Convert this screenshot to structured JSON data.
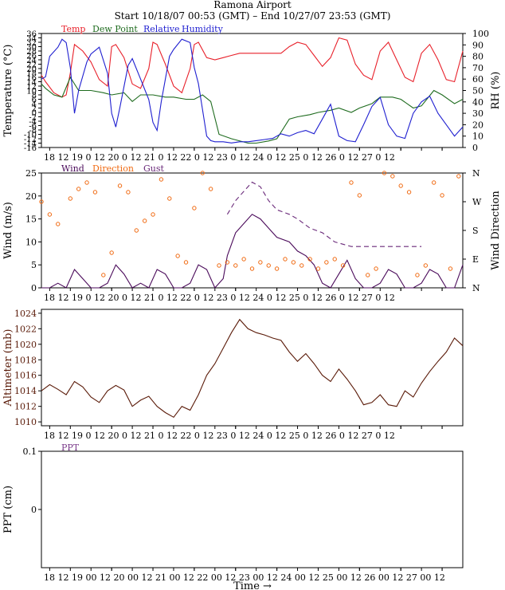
{
  "header": {
    "title": "Ramona Airport",
    "subtitle": "Start 10/18/07 00:53 (GMT) – End 10/27/07 23:53 (GMT)"
  },
  "time_axis": {
    "ticks": [
      {
        "t": 18,
        "label": "18"
      },
      {
        "t": 18.5,
        "label": "12"
      },
      {
        "t": 19,
        "label": "19"
      },
      {
        "t": 19.5,
        "label": "00"
      },
      {
        "t": 19.5,
        "label": "12"
      },
      {
        "t": 20,
        "label": "20"
      },
      {
        "t": 20.5,
        "label": "00"
      },
      {
        "t": 20.5,
        "label": "12"
      },
      {
        "t": 21,
        "label": "21"
      },
      {
        "t": 21.5,
        "label": "00"
      },
      {
        "t": 21.5,
        "label": "12"
      },
      {
        "t": 22,
        "label": "22"
      },
      {
        "t": 22.5,
        "label": "00"
      },
      {
        "t": 22.5,
        "label": "12"
      },
      {
        "t": 23,
        "label": "23"
      },
      {
        "t": 23.5,
        "label": "00"
      },
      {
        "t": 23.5,
        "label": "12"
      },
      {
        "t": 24,
        "label": "24"
      },
      {
        "t": 24.5,
        "label": "00"
      },
      {
        "t": 24.5,
        "label": "12"
      },
      {
        "t": 25,
        "label": "25"
      },
      {
        "t": 25.5,
        "label": "00"
      },
      {
        "t": 25.5,
        "label": "12"
      },
      {
        "t": 26,
        "label": "26"
      },
      {
        "t": 26.5,
        "label": "00"
      },
      {
        "t": 26.5,
        "label": "12"
      },
      {
        "t": 27,
        "label": "27"
      },
      {
        "t": 27.5,
        "label": "00"
      },
      {
        "t": 27.5,
        "label": "12"
      }
    ],
    "tick_text": "18 12 19 0 12 20 0 12 21 0 12 22 0 12 23 0 12 24 0 12 25 0 12 26 0 12 27 0 12",
    "tick_text_bottom": "18 12 19 00 12 20 00 12 21 00 12 22 00 12 23 00 12 24 00 12 25 00 12 26 00 12 27 00 12",
    "xlabel": "Time →"
  },
  "colors": {
    "temp": "#e8202a",
    "dew": "#1e6b1e",
    "rh": "#1f1fd0",
    "wind": "#4a0a5a",
    "direction": "#f06a12",
    "gust": "#6a2a7a",
    "altimeter": "#5a1a08",
    "ppt": "#7a3a8a",
    "axis": "#000000"
  },
  "chart_data": [
    {
      "type": "line",
      "panel": "temperature",
      "legend": [
        "Temp",
        "Dew Point",
        "Relative Humidity"
      ],
      "ylabel": "Temperature (°C)",
      "ylabel_right": "RH (%)",
      "y_ticks": [
        36,
        34,
        32,
        30,
        28,
        26,
        24,
        22,
        20,
        18,
        16,
        14,
        12,
        10,
        8,
        6,
        4,
        2,
        0,
        -2,
        -4,
        -6,
        -8,
        -10,
        -12,
        -14,
        -16
      ],
      "ylim": [
        -16,
        36
      ],
      "y2_ticks": [
        0,
        10,
        20,
        30,
        40,
        50,
        60,
        70,
        80,
        90,
        100
      ],
      "y2lim": [
        0,
        100
      ],
      "xlim": [
        17.8,
        28.0
      ],
      "series": [
        {
          "name": "Temp",
          "x": [
            17.8,
            17.9,
            18.1,
            18.3,
            18.4,
            18.5,
            18.6,
            18.8,
            19.0,
            19.2,
            19.4,
            19.5,
            19.6,
            19.8,
            20.0,
            20.2,
            20.4,
            20.5,
            20.6,
            20.8,
            21.0,
            21.2,
            21.4,
            21.5,
            21.6,
            21.8,
            22.0,
            22.2,
            22.4,
            22.6,
            22.8,
            23.0,
            23.2,
            23.4,
            23.6,
            23.8,
            24.0,
            24.2,
            24.4,
            24.6,
            24.8,
            25.0,
            25.2,
            25.4,
            25.6,
            25.8,
            26.0,
            26.2,
            26.4,
            26.6,
            26.8,
            27.0,
            27.2,
            27.4,
            27.6,
            27.8,
            28.0
          ],
          "values": [
            17,
            14,
            9,
            7,
            8,
            18,
            31,
            28,
            23,
            15,
            12,
            30,
            31,
            25,
            13,
            11,
            20,
            32,
            31,
            22,
            12,
            9,
            20,
            31,
            32,
            25,
            24,
            25,
            26,
            27,
            27,
            27,
            27,
            27,
            27,
            30,
            32,
            31,
            26,
            21,
            25,
            34,
            33,
            22,
            17,
            15,
            28,
            32,
            24,
            16,
            14,
            27,
            31,
            24,
            15,
            14,
            28
          ]
        },
        {
          "name": "Dew Point",
          "x": [
            17.8,
            17.9,
            18.1,
            18.3,
            18.5,
            18.7,
            19.0,
            19.3,
            19.5,
            19.8,
            20.0,
            20.2,
            20.5,
            20.8,
            21.0,
            21.3,
            21.5,
            21.7,
            21.9,
            22.1,
            22.4,
            22.8,
            23.0,
            23.3,
            23.5,
            23.8,
            24.0,
            24.3,
            24.5,
            24.8,
            25.0,
            25.3,
            25.5,
            25.8,
            26.0,
            26.3,
            26.5,
            26.8,
            27.0,
            27.3,
            27.5,
            27.8,
            28.0
          ],
          "values": [
            13,
            11,
            8,
            7,
            16,
            10,
            10,
            9,
            8,
            9,
            5,
            8,
            8,
            7,
            7,
            6,
            6,
            8,
            5,
            -10,
            -12,
            -14,
            -14,
            -13,
            -12,
            -3,
            -2,
            -1,
            0,
            1,
            2,
            0,
            2,
            4,
            7,
            7,
            6,
            2,
            3,
            10,
            8,
            4,
            6
          ]
        },
        {
          "name": "Relative Humidity",
          "x": [
            17.8,
            17.9,
            18.0,
            18.2,
            18.3,
            18.4,
            18.5,
            18.6,
            18.7,
            18.9,
            19.0,
            19.2,
            19.4,
            19.5,
            19.6,
            19.7,
            19.9,
            20.0,
            20.2,
            20.4,
            20.5,
            20.6,
            20.7,
            20.9,
            21.0,
            21.2,
            21.4,
            21.5,
            21.6,
            21.8,
            21.9,
            22.0,
            22.2,
            22.4,
            22.6,
            22.8,
            23.0,
            23.2,
            23.4,
            23.6,
            23.8,
            24.0,
            24.2,
            24.4,
            24.6,
            24.8,
            25.0,
            25.2,
            25.4,
            25.6,
            25.8,
            26.0,
            26.2,
            26.4,
            26.6,
            26.8,
            27.0,
            27.2,
            27.4,
            27.6,
            27.8,
            28.0
          ],
          "values": [
            60,
            62,
            80,
            88,
            95,
            92,
            70,
            30,
            50,
            75,
            82,
            88,
            65,
            30,
            18,
            35,
            72,
            78,
            60,
            42,
            22,
            15,
            40,
            80,
            86,
            95,
            92,
            70,
            56,
            10,
            6,
            5,
            5,
            4,
            5,
            5,
            6,
            7,
            8,
            12,
            10,
            13,
            15,
            12,
            25,
            38,
            10,
            6,
            5,
            20,
            36,
            44,
            20,
            10,
            8,
            30,
            40,
            45,
            30,
            20,
            10,
            18
          ]
        }
      ]
    },
    {
      "type": "line",
      "panel": "wind",
      "legend": [
        "Wind",
        "Direction",
        "Gust"
      ],
      "ylabel": "Wind (m/s)",
      "ylabel_right": "Wind Direction",
      "y_ticks": [
        0,
        5,
        10,
        15,
        20,
        25
      ],
      "ylim": [
        0,
        25
      ],
      "y2_ticks": [
        "N",
        "E",
        "S",
        "W",
        "N"
      ],
      "xlim": [
        17.8,
        28.0
      ],
      "series": [
        {
          "name": "Wind",
          "x": [
            17.8,
            18.0,
            18.2,
            18.4,
            18.6,
            18.8,
            19.0,
            19.2,
            19.4,
            19.6,
            19.8,
            20.0,
            20.2,
            20.4,
            20.6,
            20.8,
            21.0,
            21.2,
            21.4,
            21.6,
            21.8,
            22.0,
            22.2,
            22.3,
            22.5,
            22.7,
            22.9,
            23.1,
            23.3,
            23.5,
            23.8,
            24.0,
            24.2,
            24.4,
            24.6,
            24.8,
            25.0,
            25.2,
            25.4,
            25.6,
            25.8,
            26.0,
            26.2,
            26.4,
            26.6,
            26.8,
            27.0,
            27.2,
            27.4,
            27.6,
            27.8,
            28.0
          ],
          "values": [
            0,
            0,
            1,
            0,
            4,
            2,
            0,
            0,
            1,
            5,
            3,
            0,
            1,
            0,
            4,
            3,
            0,
            0,
            1,
            5,
            4,
            0,
            2,
            7,
            12,
            14,
            16,
            15,
            13,
            11,
            10,
            8,
            7,
            5,
            1,
            0,
            3,
            6,
            2,
            0,
            0,
            1,
            4,
            3,
            0,
            0,
            1,
            4,
            3,
            0,
            0,
            5
          ]
        },
        {
          "name": "Gust",
          "x": [
            22.3,
            22.5,
            22.7,
            22.9,
            23.1,
            23.3,
            23.5,
            23.8,
            24.0,
            24.3,
            24.6,
            24.9,
            25.3,
            25.8,
            26.3,
            26.8,
            27.0
          ],
          "values": [
            16,
            19,
            21,
            23,
            22,
            19,
            17,
            16,
            15,
            13,
            12,
            10,
            9,
            9,
            9,
            9,
            9
          ]
        },
        {
          "name": "Direction",
          "x": [
            17.8,
            18.0,
            18.2,
            18.5,
            18.7,
            18.9,
            19.1,
            19.3,
            19.5,
            19.7,
            19.9,
            20.1,
            20.3,
            20.5,
            20.7,
            20.9,
            21.1,
            21.3,
            21.5,
            21.7,
            21.9,
            22.1,
            22.3,
            22.5,
            22.7,
            22.9,
            23.1,
            23.3,
            23.5,
            23.7,
            23.9,
            24.1,
            24.3,
            24.5,
            24.7,
            24.9,
            25.1,
            25.3,
            25.5,
            25.7,
            25.9,
            26.1,
            26.3,
            26.5,
            26.7,
            26.9,
            27.1,
            27.3,
            27.5,
            27.7,
            27.9
          ],
          "values": [
            270,
            230,
            200,
            280,
            310,
            330,
            300,
            40,
            110,
            320,
            300,
            180,
            210,
            230,
            340,
            280,
            100,
            80,
            250,
            360,
            310,
            70,
            80,
            70,
            90,
            60,
            80,
            70,
            60,
            90,
            80,
            70,
            90,
            60,
            80,
            90,
            70,
            330,
            290,
            40,
            60,
            360,
            350,
            320,
            300,
            40,
            70,
            330,
            290,
            60,
            350
          ]
        }
      ]
    },
    {
      "type": "line",
      "panel": "altimeter",
      "legend": [],
      "ylabel": "Altimeter (mb)",
      "y_ticks": [
        1010,
        1012,
        1014,
        1016,
        1018,
        1020,
        1022,
        1024
      ],
      "ylim": [
        1009.5,
        1024.5
      ],
      "xlim": [
        17.8,
        28.0
      ],
      "series": [
        {
          "name": "Altimeter",
          "x": [
            17.8,
            18.0,
            18.2,
            18.4,
            18.6,
            18.8,
            19.0,
            19.2,
            19.4,
            19.6,
            19.8,
            20.0,
            20.2,
            20.4,
            20.6,
            20.8,
            21.0,
            21.2,
            21.4,
            21.6,
            21.8,
            22.0,
            22.2,
            22.4,
            22.6,
            22.8,
            23.0,
            23.2,
            23.4,
            23.6,
            23.8,
            24.0,
            24.2,
            24.4,
            24.6,
            24.8,
            25.0,
            25.2,
            25.4,
            25.6,
            25.8,
            26.0,
            26.2,
            26.4,
            26.6,
            26.8,
            27.0,
            27.2,
            27.4,
            27.6,
            27.8,
            28.0
          ],
          "values": [
            1014,
            1014.8,
            1014.2,
            1013.5,
            1015.2,
            1014.5,
            1013.2,
            1012.5,
            1014.0,
            1014.7,
            1014.1,
            1012.0,
            1012.8,
            1013.3,
            1012.0,
            1011.2,
            1010.6,
            1012.0,
            1011.5,
            1013.5,
            1016.0,
            1017.5,
            1019.5,
            1021.5,
            1023.2,
            1022.0,
            1021.5,
            1021.2,
            1020.8,
            1020.5,
            1019.0,
            1017.8,
            1018.8,
            1017.5,
            1016.0,
            1015.2,
            1016.8,
            1015.5,
            1014.0,
            1012.2,
            1012.5,
            1013.5,
            1012.2,
            1012.0,
            1014.0,
            1013.2,
            1015.0,
            1016.5,
            1017.8,
            1019.0,
            1020.8,
            1019.8
          ]
        }
      ]
    },
    {
      "type": "line",
      "panel": "precipitation",
      "legend": [
        "PPT"
      ],
      "ylabel": "PPT (cm)",
      "y_ticks": [
        0,
        0.1
      ],
      "ylim": [
        -0.1,
        0.1
      ],
      "xlim": [
        17.8,
        28.0
      ],
      "series": [
        {
          "name": "PPT",
          "x": [],
          "values": []
        }
      ]
    }
  ]
}
